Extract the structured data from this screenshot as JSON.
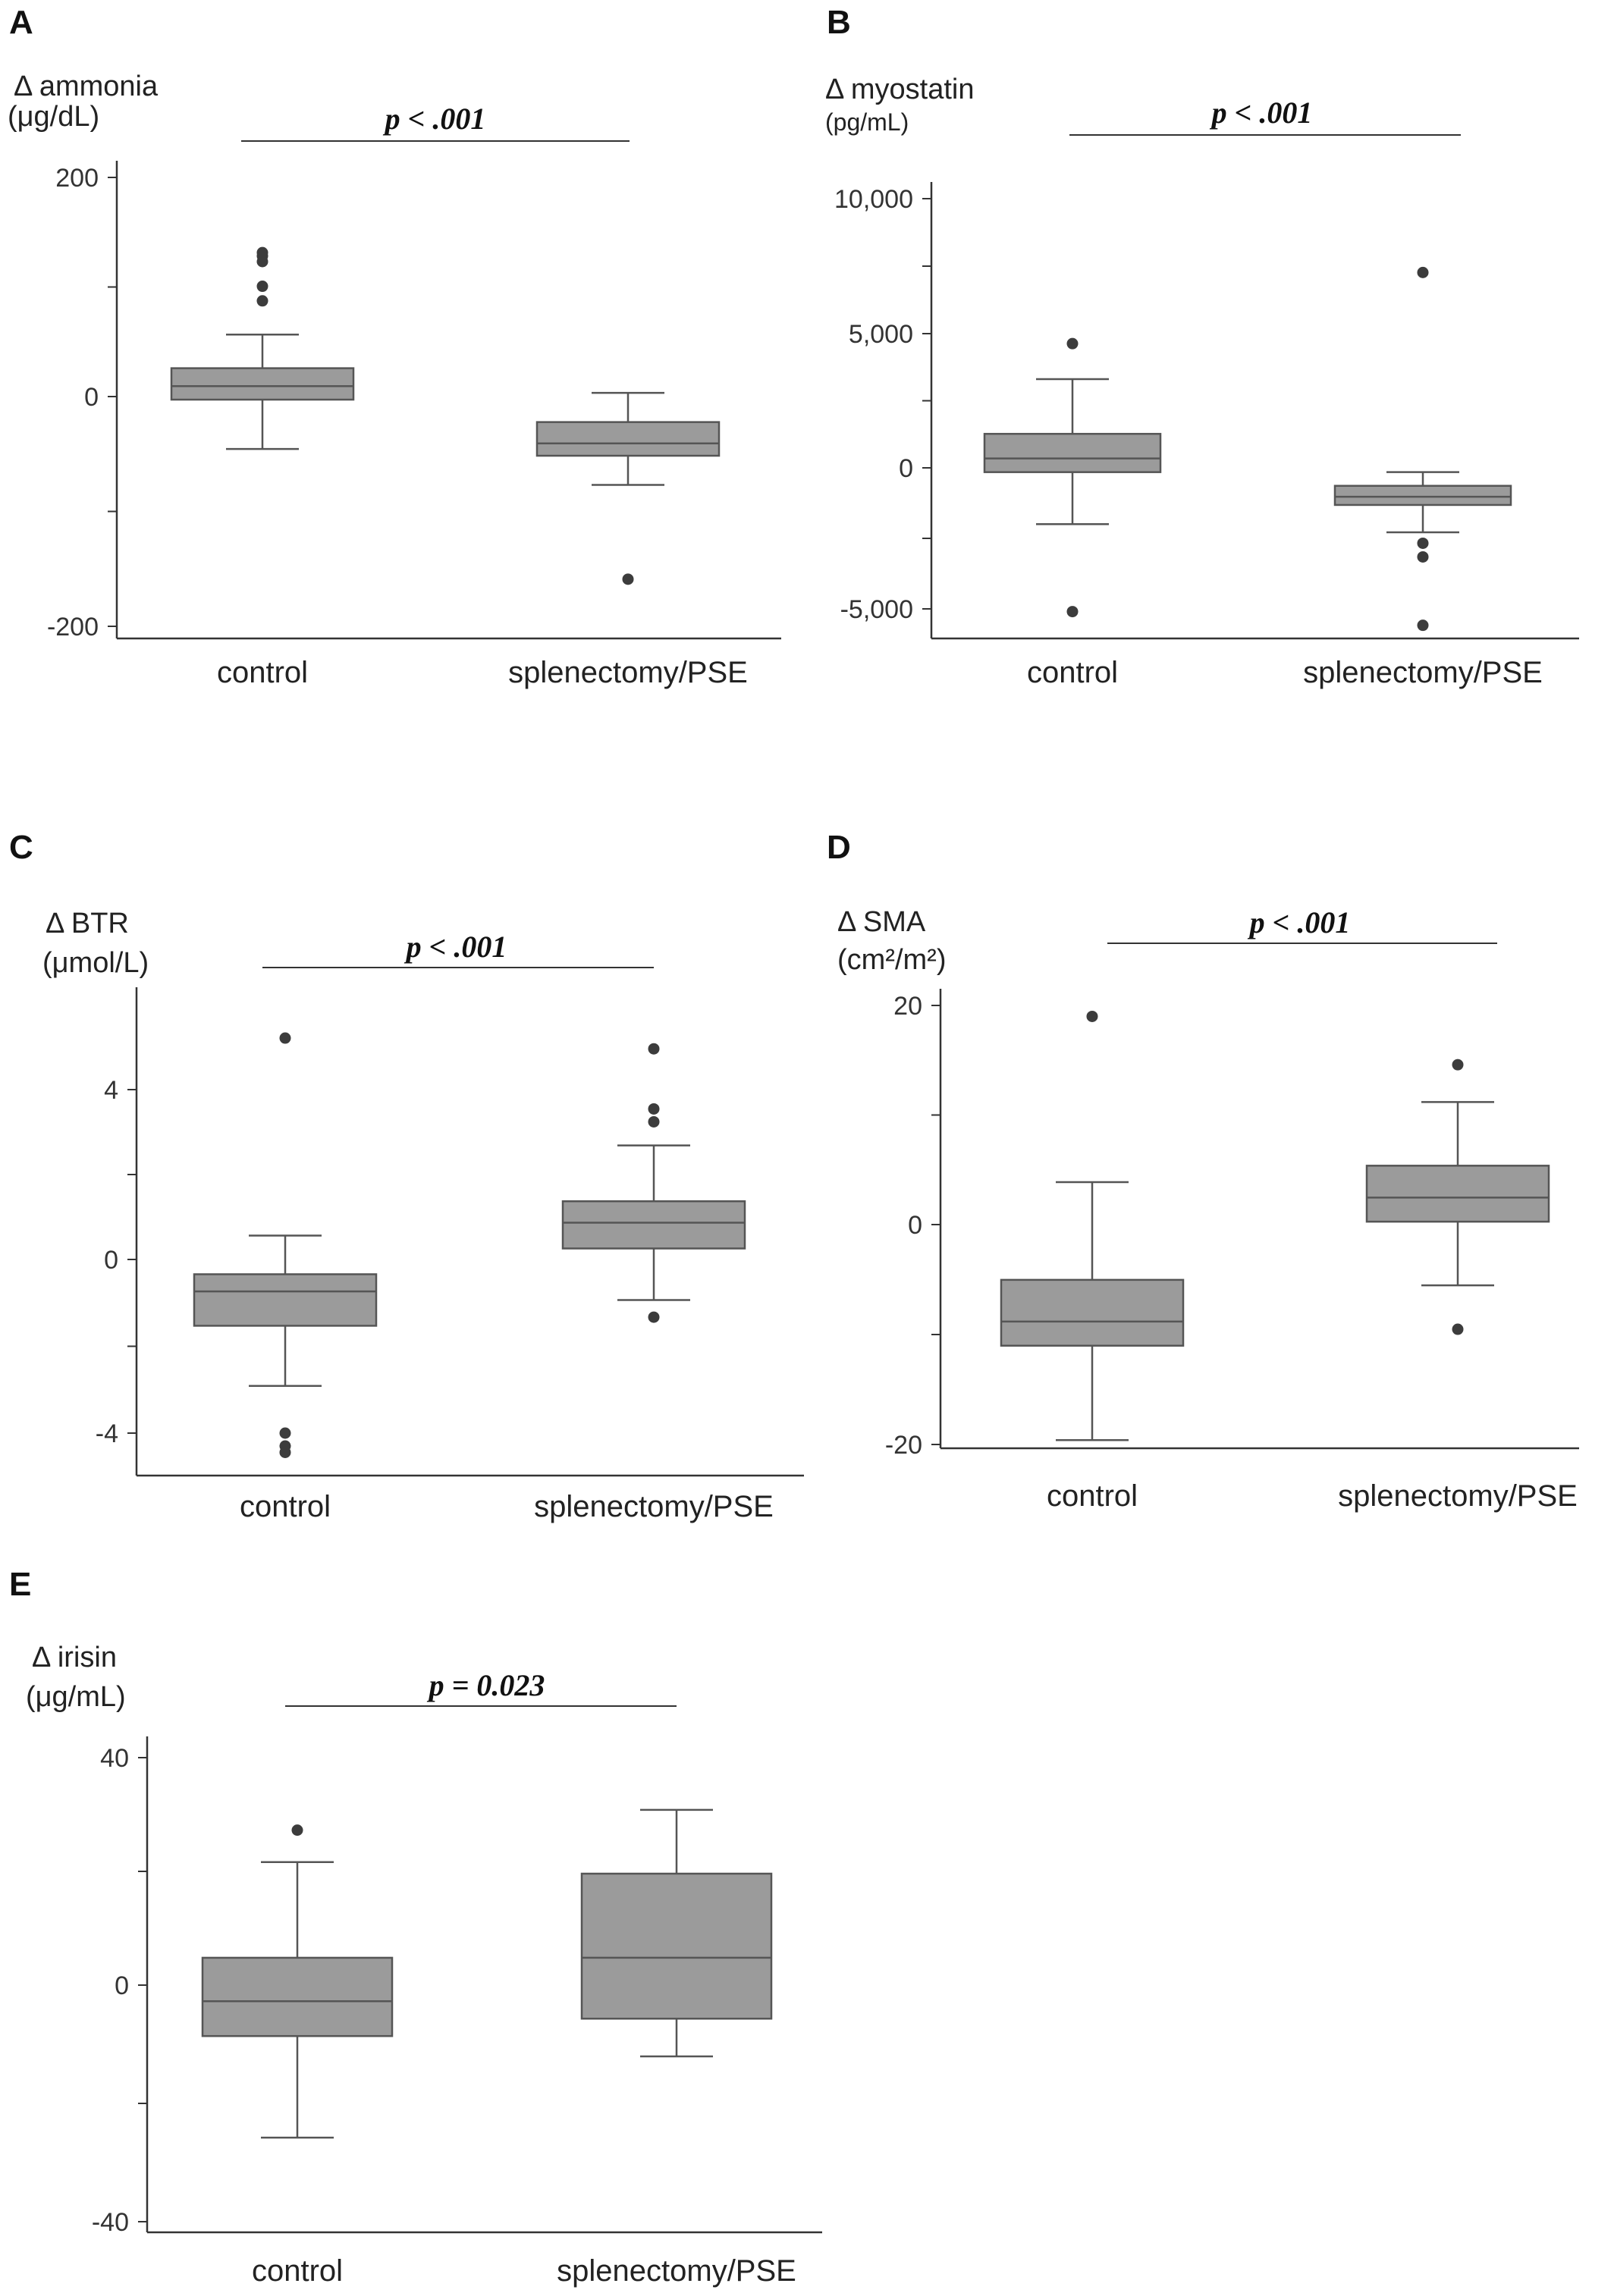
{
  "chart_data": [
    {
      "panel": "A",
      "type": "box",
      "ylabel": "Δ ammonia",
      "yunit": "(μg/dL)",
      "yticks": [
        "200",
        "0",
        "-200"
      ],
      "ylim": [
        -210,
        205
      ],
      "categories": [
        "control",
        "splenectomy/PSE"
      ],
      "pvalue": "p < .001",
      "boxes": [
        {
          "category": "control",
          "whisker_low": -42,
          "q1": 2,
          "median": 14,
          "q3": 30,
          "whisker_high": 60,
          "outliers": [
            90,
            103,
            125,
            130,
            133
          ]
        },
        {
          "category": "splenectomy/PSE",
          "whisker_low": -74,
          "q1": -48,
          "median": -37,
          "q3": -18,
          "whisker_high": 8,
          "outliers": [
            -158
          ]
        }
      ]
    },
    {
      "panel": "B",
      "type": "box",
      "ylabel": "Δ myostatin",
      "yunit": "(pg/mL)",
      "yticks": [
        "10,000",
        "5,000",
        "0",
        "-5,000"
      ],
      "ylim": [
        -6200,
        10600
      ],
      "categories": [
        "control",
        "splenectomy/PSE"
      ],
      "pvalue": "p < .001",
      "boxes": [
        {
          "category": "control",
          "whisker_low": -1900,
          "q1": 0,
          "median": 500,
          "q3": 1400,
          "whisker_high": 3400,
          "outliers": [
            4700,
            -5100
          ]
        },
        {
          "category": "splenectomy/PSE",
          "whisker_low": -2200,
          "q1": -1200,
          "median": -900,
          "q3": -500,
          "whisker_high": 0,
          "outliers": [
            7300,
            -2600,
            -3100,
            -5600
          ]
        }
      ]
    },
    {
      "panel": "C",
      "type": "box",
      "ylabel": "Δ BTR",
      "yunit": "(μmol/L)",
      "yticks": [
        "4",
        "0",
        "-4"
      ],
      "ylim": [
        -4.9,
        6.1
      ],
      "categories": [
        "control",
        "splenectomy/PSE"
      ],
      "pvalue": "p < .001",
      "boxes": [
        {
          "category": "control",
          "whisker_low": -2.9,
          "q1": -1.5,
          "median": -0.7,
          "q3": -0.3,
          "whisker_high": 0.6,
          "outliers": [
            5.2,
            -4.0,
            -4.3,
            -4.45
          ]
        },
        {
          "category": "splenectomy/PSE",
          "whisker_low": -0.9,
          "q1": 0.3,
          "median": 0.9,
          "q3": 1.4,
          "whisker_high": 2.7,
          "outliers": [
            4.95,
            3.55,
            3.25,
            -1.3
          ]
        }
      ]
    },
    {
      "panel": "D",
      "type": "box",
      "ylabel": "Δ SMA",
      "yunit": "(cm²/m²)",
      "yticks": [
        "20",
        "0",
        "-20"
      ],
      "ylim": [
        -21,
        21
      ],
      "categories": [
        "control",
        "splenectomy/PSE"
      ],
      "pvalue": "p < .001",
      "boxes": [
        {
          "category": "control",
          "whisker_low": -19.6,
          "q1": -11,
          "median": -8.8,
          "q3": -5,
          "whisker_high": 3.9,
          "outliers": [
            19
          ]
        },
        {
          "category": "splenectomy/PSE",
          "whisker_low": -5.5,
          "q1": 0.3,
          "median": 2.5,
          "q3": 5.4,
          "whisker_high": 11.2,
          "outliers": [
            14.6,
            -9.5
          ]
        }
      ]
    },
    {
      "panel": "E",
      "type": "box",
      "ylabel": "Δ irisin",
      "yunit": "(μg/mL)",
      "yticks": [
        "40",
        "0",
        "-40"
      ],
      "ylim": [
        -42,
        44
      ],
      "categories": [
        "control",
        "splenectomy/PSE"
      ],
      "pvalue": "p = 0.023",
      "boxes": [
        {
          "category": "control",
          "whisker_low": -25.5,
          "q1": -8,
          "median": -2,
          "q3": 5.5,
          "whisker_high": 22,
          "outliers": [
            27.5
          ]
        },
        {
          "category": "splenectomy/PSE",
          "whisker_low": -11.5,
          "q1": -5,
          "median": 5.5,
          "q3": 20,
          "whisker_high": 31,
          "outliers": []
        }
      ]
    }
  ],
  "style": {
    "box_fill": "#9b9b9b",
    "box_stroke": "#555555",
    "point_color": "#3c3c3c",
    "axis_color": "#333333"
  }
}
